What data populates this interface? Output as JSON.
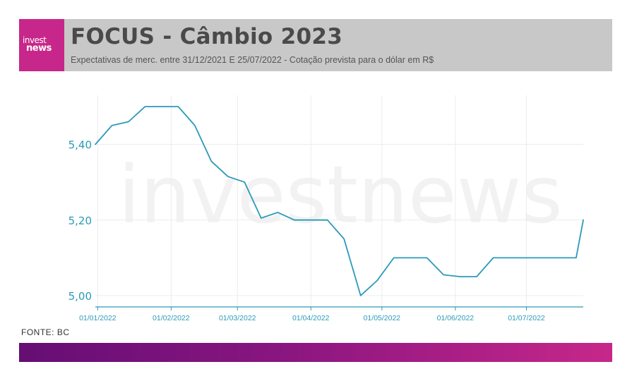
{
  "header": {
    "logo_top": "invest",
    "logo_bottom": "news",
    "title": "FOCUS - Câmbio 2023",
    "subtitle": "Expectativas de merc. entre 31/12/2021 E 25/07/2022 - Cotação prevista para o dólar em R$"
  },
  "watermark": "investnews",
  "source": "FONTE: BC",
  "colors": {
    "line": "#2b9ab8",
    "brand": "#c7278a",
    "brand_dark": "#650e74",
    "header_bg": "#c8c8c8"
  },
  "chart_data": {
    "type": "line",
    "title": "",
    "xlabel": "",
    "ylabel": "",
    "x": [
      "31/12/2021",
      "07/01/2022",
      "14/01/2022",
      "21/01/2022",
      "28/01/2022",
      "04/02/2022",
      "11/02/2022",
      "18/02/2022",
      "25/02/2022",
      "04/03/2022",
      "11/03/2022",
      "18/03/2022",
      "25/03/2022",
      "01/04/2022",
      "08/04/2022",
      "15/04/2022",
      "22/04/2022",
      "29/04/2022",
      "06/05/2022",
      "13/05/2022",
      "20/05/2022",
      "27/05/2022",
      "03/06/2022",
      "10/06/2022",
      "17/06/2022",
      "24/06/2022",
      "01/07/2022",
      "08/07/2022",
      "15/07/2022",
      "22/07/2022",
      "25/07/2022"
    ],
    "series": [
      {
        "values": [
          5.4,
          5.45,
          5.46,
          5.5,
          5.5,
          5.5,
          5.45,
          5.355,
          5.315,
          5.3,
          5.205,
          5.22,
          5.2,
          5.2,
          5.2,
          5.15,
          5.0,
          5.04,
          5.1,
          5.1,
          5.1,
          5.055,
          5.05,
          5.05,
          5.1,
          5.1,
          5.1,
          5.1,
          5.1,
          5.1,
          5.2
        ]
      }
    ],
    "x_ticks": [
      "01/01/2022",
      "01/02/2022",
      "01/03/2022",
      "01/04/2022",
      "01/05/2022",
      "01/06/2022",
      "01/07/2022"
    ],
    "y_ticks": [
      "5,00",
      "5,20",
      "5,40"
    ],
    "y_tick_values": [
      5.0,
      5.2,
      5.4
    ],
    "xlim": [
      "31/12/2021",
      "25/07/2022"
    ],
    "ylim": [
      4.97,
      5.53
    ],
    "grid": true,
    "legend": "none"
  }
}
